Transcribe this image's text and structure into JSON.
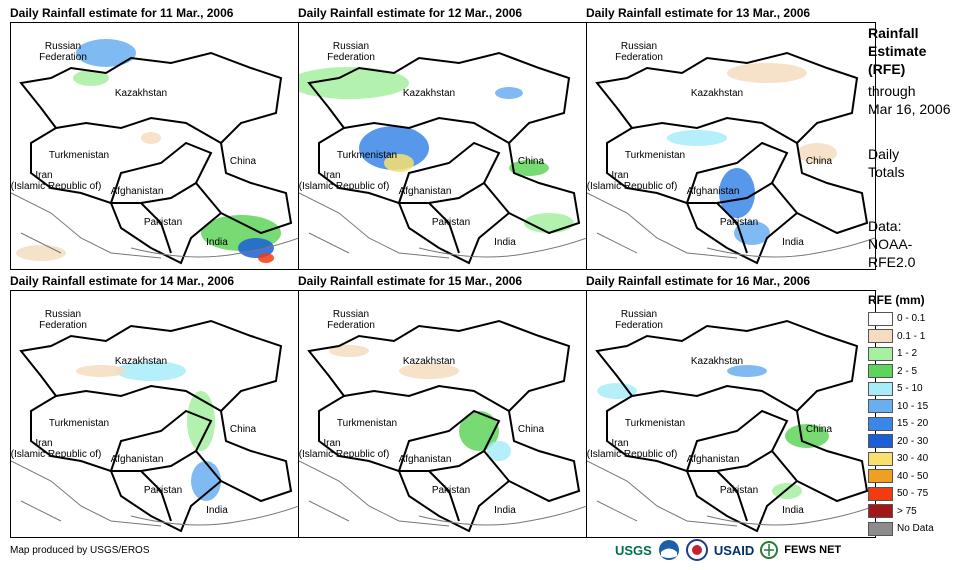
{
  "panels": [
    {
      "title": "Daily Rainfall estimate for 11 Mar., 2006"
    },
    {
      "title": "Daily Rainfall estimate for 12 Mar., 2006"
    },
    {
      "title": "Daily Rainfall estimate for 13 Mar., 2006"
    },
    {
      "title": "Daily Rainfall estimate for 14 Mar., 2006"
    },
    {
      "title": "Daily Rainfall estimate for 15 Mar., 2006"
    },
    {
      "title": "Daily Rainfall estimate for 16 Mar., 2006"
    }
  ],
  "map_labels": {
    "russia_1": "Russian",
    "russia_2": "Federation",
    "kazakhstan": "Kazakhstan",
    "turkmenistan": "Turkmenistan",
    "china": "China",
    "iran_1": "Iran",
    "iran_2": "(Islamic Republic of)",
    "afghanistan": "Afghanistan",
    "pakistan": "Pakistan",
    "india": "India"
  },
  "side_panel": {
    "title_1": "Rainfall",
    "title_2": "Estimate",
    "title_3": "(RFE)",
    "through_1": "through",
    "through_2": "Mar 16, 2006",
    "totals_1": "Daily",
    "totals_2": "Totals",
    "data_1": "Data:",
    "data_2": "NOAA-",
    "data_3": "RFE2.0"
  },
  "legend": {
    "title": "RFE (mm)",
    "items": [
      {
        "label": "0 - 0.1",
        "color": "#ffffff"
      },
      {
        "label": "0.1 - 1",
        "color": "#f5dcc0"
      },
      {
        "label": "1 - 2",
        "color": "#a6f0a0"
      },
      {
        "label": "2 - 5",
        "color": "#5fd45a"
      },
      {
        "label": "5 - 10",
        "color": "#a8ecf8"
      },
      {
        "label": "10 - 15",
        "color": "#6aaef0"
      },
      {
        "label": "15 - 20",
        "color": "#3a86e8"
      },
      {
        "label": "20 - 30",
        "color": "#1a5ed8"
      },
      {
        "label": "30 - 40",
        "color": "#f8e070"
      },
      {
        "label": "40 - 50",
        "color": "#f0a020"
      },
      {
        "label": "50 - 75",
        "color": "#f03c10"
      },
      {
        "label": "> 75",
        "color": "#a01818"
      },
      {
        "label": "No Data",
        "color": "#8c8c8c"
      }
    ]
  },
  "footer": {
    "credit": "Map produced by USGS/EROS"
  },
  "logos": {
    "usgs": "USGS",
    "usaid": "USAID",
    "fews": "FEWS NET"
  }
}
